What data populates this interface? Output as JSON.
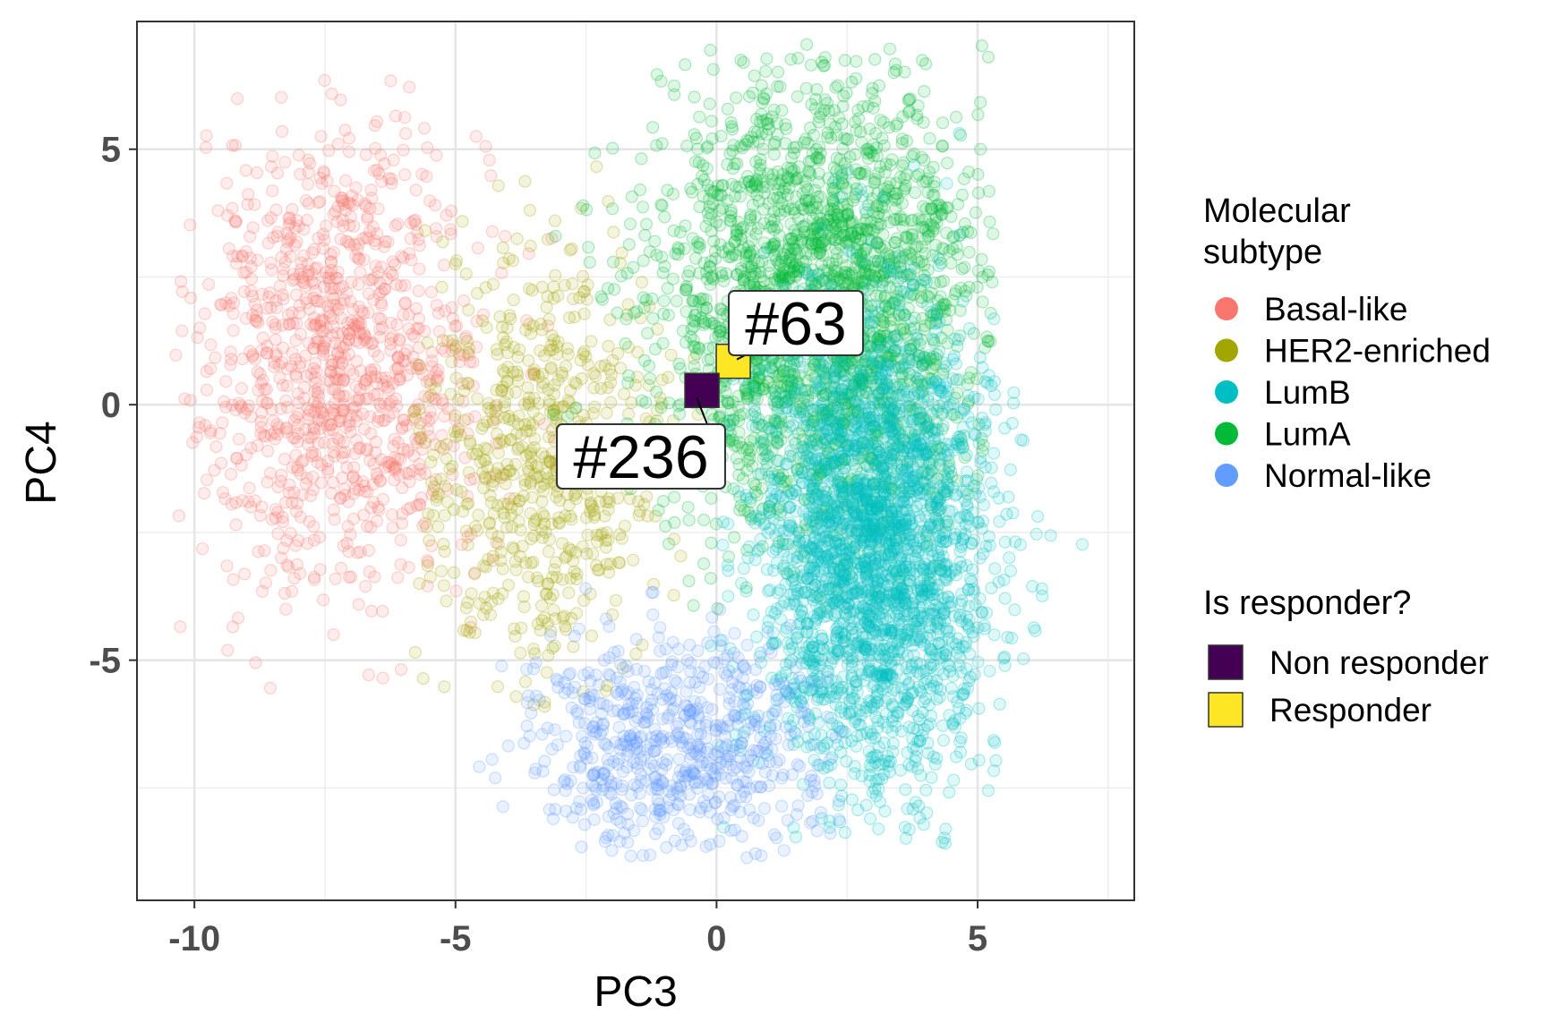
{
  "chart_data": {
    "type": "scatter",
    "xlabel": "PC3",
    "ylabel": "PC4",
    "xlim": [
      -11.1,
      8.0
    ],
    "ylim": [
      -9.7,
      7.5
    ],
    "x_ticks": [
      -10,
      -5,
      0,
      5
    ],
    "y_ticks": [
      -5,
      0,
      5
    ],
    "x_tick_labels": [
      "-10",
      "-5",
      "0",
      "5"
    ],
    "y_tick_labels": [
      "-5",
      "0",
      "5"
    ],
    "grid": true,
    "legend_position": "right",
    "legends": [
      {
        "title_lines": [
          "Molecular",
          "subtype"
        ],
        "entries": [
          {
            "label": "Basal-like",
            "color": "#F8766D"
          },
          {
            "label": "HER2-enriched",
            "color": "#A3A500"
          },
          {
            "label": "LumB",
            "color": "#00BFC4"
          },
          {
            "label": "LumA",
            "color": "#00BA38"
          },
          {
            "label": "Normal-like",
            "color": "#619CFF"
          }
        ]
      },
      {
        "title_lines": [
          "Is responder?"
        ],
        "entries": [
          {
            "label": "Non responder",
            "color": "#440154"
          },
          {
            "label": "Responder",
            "color": "#FDE725"
          }
        ]
      }
    ],
    "series": [
      {
        "name": "Basal-like",
        "color": "#F8766D",
        "n": 1050,
        "cx": -7.2,
        "cy": 0.9,
        "sx": 1.4,
        "sy": 2.3,
        "xrange": [
          -10.4,
          -3.0
        ],
        "yrange": [
          -6.0,
          6.5
        ]
      },
      {
        "name": "HER2-enriched",
        "color": "#A3A500",
        "n": 650,
        "cx": -3.4,
        "cy": -1.1,
        "sx": 1.3,
        "sy": 2.1,
        "xrange": [
          -5.8,
          -0.3
        ],
        "yrange": [
          -6.0,
          5.2
        ]
      },
      {
        "name": "LumA",
        "color": "#00BA38",
        "n": 2300,
        "cx": 2.0,
        "cy": 2.0,
        "sx": 1.6,
        "sy": 2.2,
        "xrange": [
          -3.2,
          5.3
        ],
        "yrange": [
          -4.0,
          7.1
        ]
      },
      {
        "name": "LumB",
        "color": "#00BFC4",
        "n": 2600,
        "cx": 3.0,
        "cy": -2.8,
        "sx": 1.1,
        "sy": 2.3,
        "xrange": [
          -0.2,
          7.2
        ],
        "yrange": [
          -8.6,
          5.6
        ]
      },
      {
        "name": "Normal-like",
        "color": "#619CFF",
        "n": 650,
        "cx": -0.8,
        "cy": -6.6,
        "sx": 1.4,
        "sy": 1.0,
        "xrange": [
          -5.0,
          2.4
        ],
        "yrange": [
          -8.9,
          -3.5
        ]
      }
    ],
    "highlighted_points": [
      {
        "label": "#63",
        "x": 0.32,
        "y": 0.85,
        "group": "Responder",
        "color": "#FDE725"
      },
      {
        "label": "#236",
        "x": -0.28,
        "y": 0.28,
        "group": "Non responder",
        "color": "#440154"
      }
    ]
  }
}
